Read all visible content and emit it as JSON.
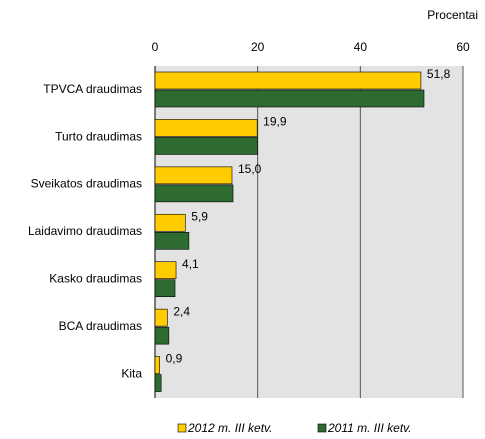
{
  "chart_data": {
    "type": "hbar",
    "axis_label": "Procentai",
    "categories": [
      "TPVCA draudimas",
      "Turto draudimas",
      "Sveikatos draudimas",
      "Laidavimo draudimas",
      "Kasko draudimas",
      "BCA draudimas",
      "Kita"
    ],
    "series": [
      {
        "name": "2012 m. III ketv.",
        "color": "#ffcc00",
        "values": [
          51.8,
          19.9,
          15.0,
          5.9,
          4.1,
          2.4,
          0.9
        ],
        "value_labels": [
          "51,8",
          "19,9",
          "15,0",
          "5,9",
          "4,1",
          "2,4",
          "0,9"
        ]
      },
      {
        "name": "2011 m. III ketv.",
        "color": "#2e6b30",
        "values": [
          52.4,
          20.0,
          15.2,
          6.6,
          3.9,
          2.7,
          1.2
        ]
      }
    ],
    "xlim": [
      0,
      60
    ],
    "xticks": [
      0,
      20,
      40,
      60
    ],
    "grid": true
  }
}
